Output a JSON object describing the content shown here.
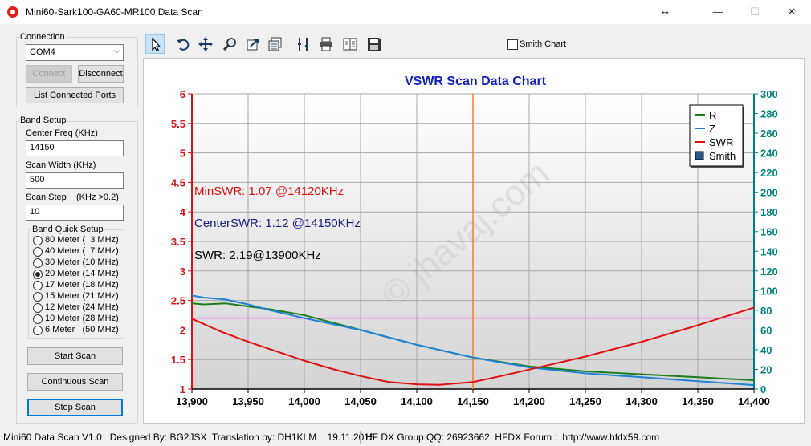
{
  "window": {
    "title": "Mini60-Sark100-GA60-MR100 Data Scan",
    "resize_glyph": "↔",
    "minimize": "—",
    "maximize": "☐",
    "close": "✕"
  },
  "connection": {
    "group_label": "Connection",
    "port_value": "COM4",
    "connect_label": "Connect",
    "disconnect_label": "Disconnect",
    "list_ports_label": "List Connected Ports"
  },
  "band_setup": {
    "group_label": "Band Setup",
    "center_freq_label": "Center Freq  (KHz)",
    "center_freq_value": "14150",
    "scan_width_label": "Scan Width   (KHz)",
    "scan_width_value": "500",
    "scan_step_label": "Scan Step",
    "scan_step_hint": "(KHz >0.2)",
    "scan_step_value": "10",
    "quick_label": "Band Quick Setup",
    "bands": [
      {
        "label": "80 Meter (  3 MHz)",
        "selected": false
      },
      {
        "label": "40 Meter (  7 MHz)",
        "selected": false
      },
      {
        "label": "30 Meter (10 MHz)",
        "selected": false
      },
      {
        "label": "20 Meter (14 MHz)",
        "selected": true
      },
      {
        "label": "17 Meter (18 MHz)",
        "selected": false
      },
      {
        "label": "15 Meter (21 MHz)",
        "selected": false
      },
      {
        "label": "12 Meter (24 MHz)",
        "selected": false
      },
      {
        "label": "10 Meter (28 MHz)",
        "selected": false
      },
      {
        "label": "6 Meter   (50 MHz)",
        "selected": false
      }
    ]
  },
  "actions": {
    "start_scan": "Start Scan",
    "continuous_scan": "Continuous Scan",
    "stop_scan": "Stop Scan"
  },
  "toolbar": {
    "tools": [
      "pointer-icon",
      "undo-zoom-icon",
      "pan-icon",
      "zoom-icon",
      "export-icon",
      "copy-data-icon",
      "settings-icon",
      "print-icon",
      "report-icon",
      "save-icon"
    ],
    "smith_chart_label": "Smith Chart",
    "smith_chart_checked": false
  },
  "chart_data": {
    "type": "line",
    "title": "VSWR Scan Data Chart",
    "watermark": "© jhavaj.com",
    "x": [
      13900,
      13950,
      14000,
      14050,
      14100,
      14150,
      14200,
      14250,
      14300,
      14350,
      14400
    ],
    "xticks": [
      "13,900",
      "13,950",
      "14,000",
      "14,050",
      "14,100",
      "14,150",
      "14,200",
      "14,250",
      "14,300",
      "14,350",
      "14,400"
    ],
    "xlim": [
      13900,
      14400
    ],
    "y_left": {
      "ticks": [
        "6",
        "5.5",
        "5",
        "4.5",
        "4",
        "3.5",
        "3",
        "2.5",
        "2",
        "1.5",
        "1"
      ],
      "lim": [
        1,
        6
      ],
      "color": "#e01010"
    },
    "y_right": {
      "ticks": [
        "300",
        "280",
        "260",
        "240",
        "220",
        "200",
        "180",
        "160",
        "140",
        "120",
        "100",
        "80",
        "60",
        "40",
        "20",
        "0"
      ],
      "lim": [
        0,
        300
      ],
      "color": "#008080"
    },
    "series": [
      {
        "name": "R",
        "axis": "right",
        "color": "#1a7f1a",
        "x": [
          13900,
          13910,
          13930,
          13950,
          13970,
          14000,
          14050,
          14100,
          14150,
          14200,
          14250,
          14300,
          14350,
          14400
        ],
        "values": [
          87,
          86,
          87,
          84,
          81,
          75,
          60,
          45,
          32,
          23,
          18,
          15,
          12,
          9
        ]
      },
      {
        "name": "Z",
        "axis": "right",
        "color": "#1e82d8",
        "x": [
          13900,
          13910,
          13930,
          13950,
          13970,
          14000,
          14050,
          14100,
          14150,
          14200,
          14250,
          14300,
          14350,
          14400
        ],
        "values": [
          95,
          93,
          91,
          86,
          80,
          72,
          60,
          45,
          32,
          22,
          16,
          12,
          8,
          4
        ]
      },
      {
        "name": "SWR",
        "axis": "left",
        "color": "#e01010",
        "x": [
          13900,
          13925,
          13950,
          13975,
          14000,
          14025,
          14050,
          14075,
          14100,
          14120,
          14150,
          14175,
          14200,
          14250,
          14300,
          14350,
          14400
        ],
        "values": [
          2.19,
          1.98,
          1.8,
          1.64,
          1.48,
          1.34,
          1.22,
          1.12,
          1.08,
          1.07,
          1.12,
          1.22,
          1.33,
          1.55,
          1.8,
          2.08,
          2.38
        ]
      }
    ],
    "legend": {
      "position": "top-right",
      "items": [
        {
          "name": "R",
          "color": "#1a7f1a",
          "kind": "line"
        },
        {
          "name": "Z",
          "color": "#1e82d8",
          "kind": "line"
        },
        {
          "name": "SWR",
          "color": "#e01010",
          "kind": "line"
        },
        {
          "name": "Smith",
          "color": "#2a5a8a",
          "kind": "box"
        }
      ]
    },
    "marker_x": 14150,
    "marker_swr": 2.2,
    "annotations": [
      {
        "text": "MinSWR: 1.07 @14120KHz",
        "color": "#e01010"
      },
      {
        "text": "CenterSWR: 1.12 @14150KHz",
        "color": "#1a2080"
      },
      {
        "text": "SWR: 2.19@13900KHz",
        "color": "#000000"
      }
    ],
    "grid": true
  },
  "status": {
    "left": "Mini60 Data Scan V1.0   Designed By: BG2JSX  Translation by: DH1KLM    19.11.2015",
    "right": "HF DX Group QQ: 26923662  HFDX Forum :  http://www.hfdx59.com"
  }
}
